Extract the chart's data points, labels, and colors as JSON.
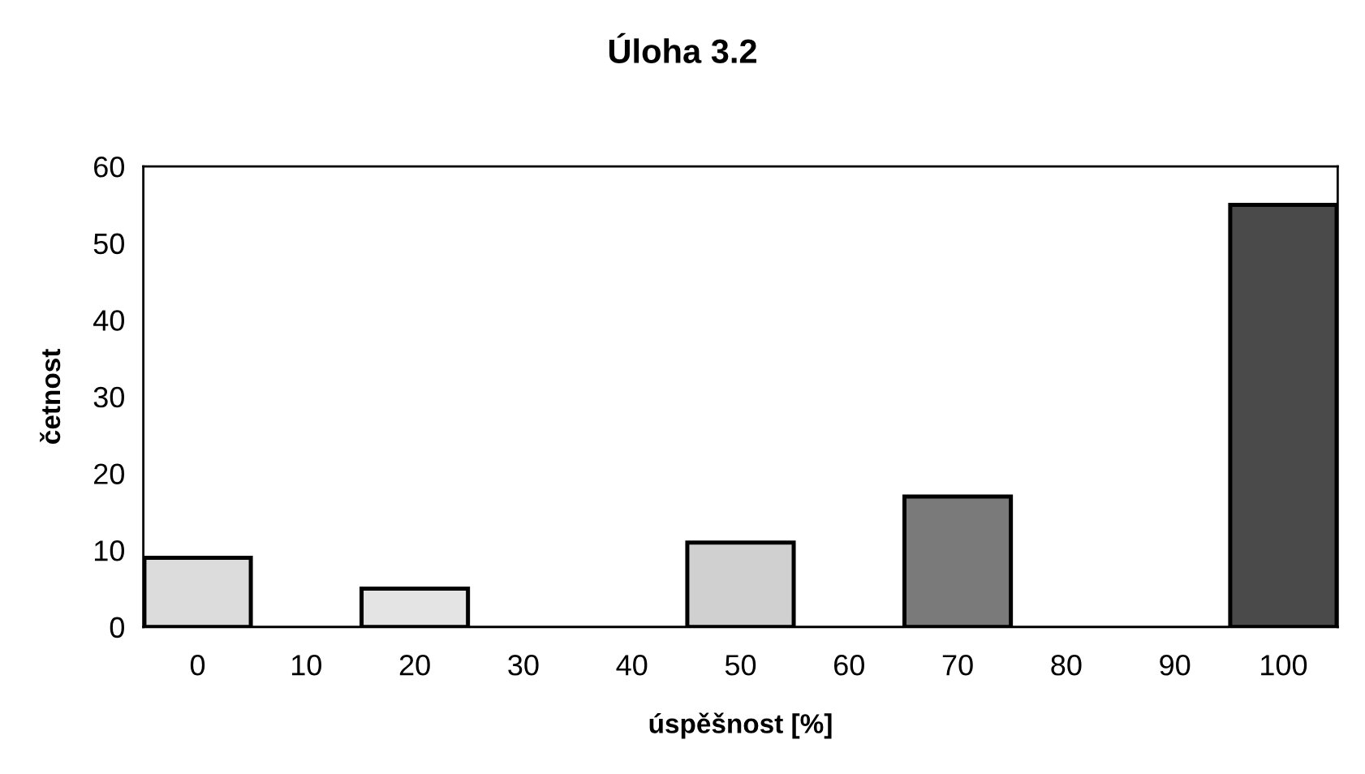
{
  "chart_data": {
    "type": "bar",
    "title": "Úloha 3.2",
    "xlabel": "úspěšnost [%]",
    "ylabel": "četnost",
    "categories": [
      "0",
      "10",
      "20",
      "30",
      "40",
      "50",
      "60",
      "70",
      "80",
      "90",
      "100"
    ],
    "values": [
      9,
      0,
      5,
      0,
      0,
      11,
      0,
      17,
      0,
      0,
      55
    ],
    "colors": [
      "#dcdcdc",
      "#cccccc",
      "#e4e4e4",
      "#bbbbbb",
      "#aaaaaa",
      "#d0d0d0",
      "#999999",
      "#7a7a7a",
      "#666666",
      "#555555",
      "#4a4a4a"
    ],
    "ylim": [
      0,
      60
    ],
    "yticks": [
      0,
      10,
      20,
      30,
      40,
      50,
      60
    ],
    "grid": false,
    "legend": false
  }
}
